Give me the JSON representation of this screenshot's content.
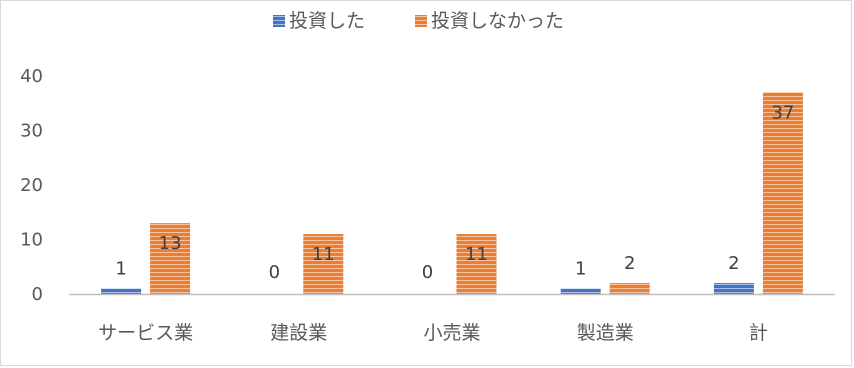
{
  "chart_data": {
    "type": "bar",
    "title": "",
    "xlabel": "",
    "ylabel": "",
    "categories": [
      "サービス業",
      "建設業",
      "小売業",
      "製造業",
      "計"
    ],
    "series": [
      {
        "name": "投資した",
        "values": [
          1,
          0,
          0,
          1,
          2
        ],
        "color": "#4472c4"
      },
      {
        "name": "投資しなかった",
        "values": [
          13,
          11,
          11,
          2,
          37
        ],
        "color": "#ed7d31"
      }
    ],
    "ylim": [
      0,
      40
    ],
    "yticks": [
      0,
      10,
      20,
      30,
      40
    ],
    "grid": false,
    "legend_position": "top",
    "data_labels": true,
    "bar_pattern": "horizontal-stripes"
  }
}
